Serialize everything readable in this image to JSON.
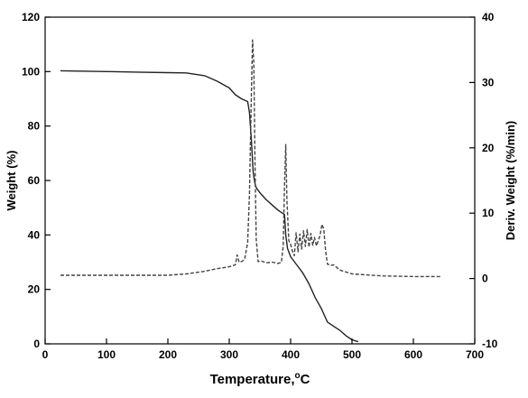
{
  "chart_data": {
    "type": "line",
    "title": "",
    "xlabel": "Temperature,°C",
    "ylabel": "Weight (%)",
    "y2label": "Deriv. Weight (%/min)",
    "xlim": [
      0,
      700
    ],
    "ylim": [
      0,
      120
    ],
    "y2lim": [
      -10,
      40
    ],
    "xticks": [
      0,
      100,
      200,
      300,
      400,
      500,
      600,
      700
    ],
    "yticks": [
      0,
      20,
      40,
      60,
      80,
      100,
      120
    ],
    "y2ticks": [
      -10,
      0,
      10,
      20,
      30,
      40
    ],
    "grid": false,
    "legend": "none",
    "series": [
      {
        "axis": "left",
        "style": "solid",
        "color": "#222222",
        "x": [
          25,
          100,
          150,
          200,
          230,
          260,
          280,
          300,
          310,
          320,
          330,
          333,
          336,
          339,
          341,
          343,
          345,
          350,
          360,
          370,
          380,
          390,
          392,
          395,
          400,
          410,
          420,
          430,
          440,
          450,
          460,
          470,
          480,
          490,
          500,
          510
        ],
        "y": [
          100.3,
          100,
          99.8,
          99.6,
          99.5,
          98.5,
          96.5,
          94,
          91.5,
          90,
          89,
          85,
          75,
          63,
          60,
          58,
          57,
          55.5,
          53,
          51,
          49,
          47.5,
          40,
          35,
          32,
          29,
          26,
          22,
          17,
          13,
          8,
          6.5,
          5,
          3,
          1.5,
          0.8
        ]
      },
      {
        "axis": "right",
        "style": "dashed",
        "color": "#444444",
        "x": [
          25,
          100,
          200,
          230,
          260,
          280,
          300,
          310,
          313,
          316,
          320,
          325,
          330,
          333,
          336,
          338,
          340,
          342,
          344,
          347,
          352,
          360,
          370,
          380,
          385,
          388,
          390,
          392,
          394,
          397,
          400,
          403,
          406,
          409,
          412,
          415,
          418,
          421,
          424,
          427,
          430,
          433,
          436,
          439,
          442,
          445,
          448,
          451,
          454,
          457,
          460,
          465,
          470,
          480,
          500,
          550,
          600,
          645
        ],
        "y": [
          0.5,
          0.5,
          0.5,
          0.7,
          1.1,
          1.5,
          1.8,
          2.1,
          3.6,
          2.5,
          2.6,
          2.9,
          5.5,
          13,
          28,
          36.5,
          33,
          17,
          6,
          2.6,
          2.7,
          2.4,
          2.5,
          2.3,
          2.5,
          5,
          14,
          20.5,
          12,
          5.8,
          5.2,
          4.2,
          3.5,
          7,
          4.1,
          6.8,
          4.5,
          7.3,
          4.9,
          7.5,
          4.8,
          6.9,
          5.1,
          6.3,
          5,
          5.8,
          6.6,
          8.3,
          7.6,
          4.2,
          2.2,
          2,
          2.1,
          1.3,
          0.7,
          0.4,
          0.3,
          0.3
        ]
      }
    ]
  }
}
